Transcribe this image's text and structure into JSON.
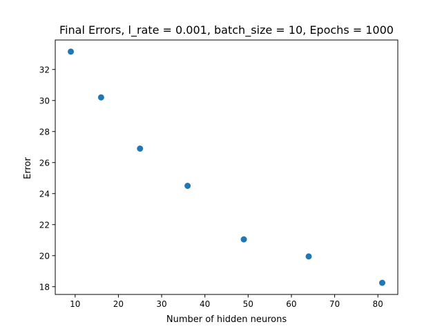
{
  "chart_data": {
    "type": "scatter",
    "title": "Final Errors, l_rate = 0.001, batch_size = 10, Epochs = 1000",
    "xlabel": "Number of hidden neurons",
    "ylabel": "Error",
    "x": [
      9,
      16,
      25,
      36,
      49,
      64,
      81
    ],
    "y": [
      33.15,
      30.2,
      26.9,
      24.5,
      21.05,
      19.95,
      18.25
    ],
    "xlim": [
      5.4,
      84.6
    ],
    "ylim": [
      17.5,
      33.9
    ],
    "xticks": [
      10,
      20,
      30,
      40,
      50,
      60,
      70,
      80
    ],
    "yticks": [
      18,
      20,
      22,
      24,
      26,
      28,
      30,
      32
    ],
    "grid": false,
    "marker_color": "#1f77b4"
  }
}
